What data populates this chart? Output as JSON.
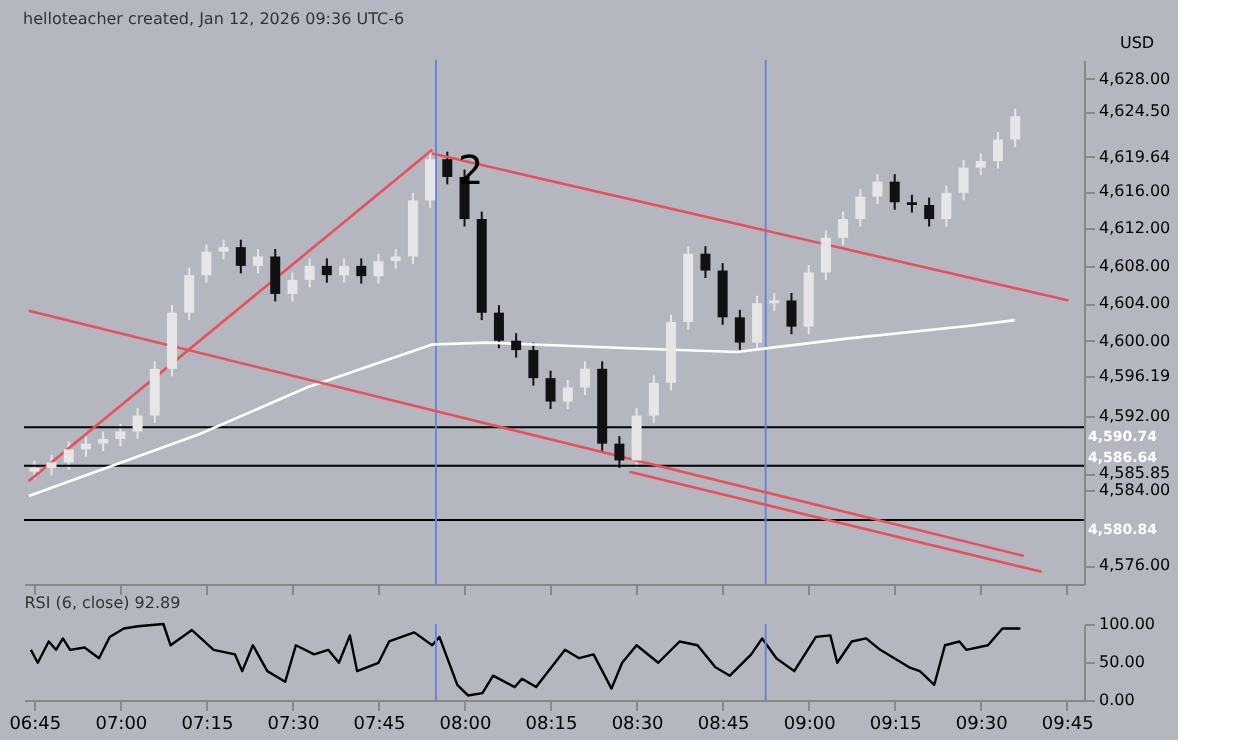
{
  "chart_data": [
    {
      "type": "candlestick",
      "title": "helloteacher created, Jan 12, 2026 09:36 UTC-6",
      "x": [
        6.75,
        6.8,
        6.85,
        6.9,
        6.95,
        7.0,
        7.05,
        7.1,
        7.15,
        7.2,
        7.25,
        7.3,
        7.35,
        7.4,
        7.45,
        7.5,
        7.55,
        7.6,
        7.65,
        7.7,
        7.75,
        7.8,
        7.85,
        7.9,
        7.95,
        8.0,
        8.05,
        8.1,
        8.15,
        8.2,
        8.25,
        8.3,
        8.35,
        8.4,
        8.45,
        8.5,
        8.55,
        8.6,
        8.65,
        8.7,
        8.75,
        8.8,
        8.85,
        8.9,
        8.95,
        9.0,
        9.05,
        9.1,
        9.15,
        9.2,
        9.25,
        9.3,
        9.35,
        9.4,
        9.45,
        9.5,
        9.55,
        9.6
      ],
      "ohlc": [
        [
          4586,
          4587.2,
          4585.2,
          4586.4
        ],
        [
          4586.4,
          4587.8,
          4585.6,
          4587
        ],
        [
          4587,
          4589.2,
          4586.2,
          4588.4
        ],
        [
          4588.4,
          4589.8,
          4587.6,
          4589
        ],
        [
          4589,
          4590.3,
          4588.2,
          4589.5
        ],
        [
          4589.5,
          4591.1,
          4588.7,
          4590.3
        ],
        [
          4590.3,
          4592.8,
          4589.5,
          4592
        ],
        [
          4592,
          4597.8,
          4591.2,
          4597
        ],
        [
          4597,
          4603.8,
          4596.2,
          4603
        ],
        [
          4603,
          4607.8,
          4602.2,
          4607
        ],
        [
          4607,
          4610.3,
          4606.2,
          4609.5
        ],
        [
          4609.5,
          4610.8,
          4608.7,
          4610
        ],
        [
          4610,
          4610.8,
          4607.2,
          4608
        ],
        [
          4608,
          4609.8,
          4607.2,
          4609
        ],
        [
          4609,
          4609.8,
          4604.2,
          4605
        ],
        [
          4605,
          4607.3,
          4604.2,
          4606.5
        ],
        [
          4606.5,
          4608.8,
          4605.7,
          4608
        ],
        [
          4608,
          4608.8,
          4606.2,
          4607
        ],
        [
          4607,
          4608.8,
          4606.2,
          4608
        ],
        [
          4608,
          4608.8,
          4606.1,
          4606.9
        ],
        [
          4606.9,
          4609.3,
          4606.1,
          4608.5
        ],
        [
          4608.5,
          4609.8,
          4607.7,
          4609
        ],
        [
          4609,
          4615.8,
          4608.2,
          4615
        ],
        [
          4615,
          4620.2,
          4614.2,
          4619.4
        ],
        [
          4619.4,
          4620.2,
          4616.7,
          4617.5
        ],
        [
          4617.5,
          4618.3,
          4612.2,
          4613
        ],
        [
          4613,
          4613.8,
          4602.2,
          4603
        ],
        [
          4603,
          4603.8,
          4599.2,
          4600
        ],
        [
          4600,
          4600.8,
          4598.2,
          4599
        ],
        [
          4599,
          4599.8,
          4595.2,
          4596
        ],
        [
          4596,
          4596.8,
          4592.7,
          4593.5
        ],
        [
          4593.5,
          4595.8,
          4592.7,
          4595
        ],
        [
          4595,
          4597.8,
          4594.2,
          4597
        ],
        [
          4597,
          4597.8,
          4588.2,
          4589
        ],
        [
          4589,
          4589.8,
          4586.4,
          4587.2
        ],
        [
          4587.2,
          4592.8,
          4586.4,
          4592
        ],
        [
          4592,
          4596.3,
          4591.2,
          4595.5
        ],
        [
          4595.5,
          4602.8,
          4594.7,
          4602
        ],
        [
          4602,
          4610.1,
          4601.2,
          4609.3
        ],
        [
          4609.3,
          4610.1,
          4606.7,
          4607.5
        ],
        [
          4607.5,
          4608.3,
          4601.7,
          4602.5
        ],
        [
          4602.5,
          4603.3,
          4599,
          4599.8
        ],
        [
          4599.8,
          4604.8,
          4599,
          4604
        ],
        [
          4604,
          4605.1,
          4603.2,
          4604.3
        ],
        [
          4604.3,
          4605.1,
          4600.7,
          4601.5
        ],
        [
          4601.5,
          4608.1,
          4600.7,
          4607.3
        ],
        [
          4607.3,
          4611.8,
          4606.5,
          4611
        ],
        [
          4611,
          4613.8,
          4610.2,
          4613
        ],
        [
          4613,
          4616.2,
          4612.2,
          4615.4
        ],
        [
          4615.4,
          4617.8,
          4614.6,
          4617
        ],
        [
          4617,
          4617.8,
          4614,
          4614.8
        ],
        [
          4614.8,
          4615.6,
          4613.7,
          4614.5
        ],
        [
          4614.5,
          4615.3,
          4612.2,
          4613
        ],
        [
          4613,
          4616.6,
          4612.2,
          4615.8
        ],
        [
          4615.8,
          4619.3,
          4615,
          4618.5
        ],
        [
          4618.5,
          4620,
          4617.7,
          4619.2
        ],
        [
          4619.2,
          4622.3,
          4618.4,
          4621.5
        ],
        [
          4621.5,
          4624.8,
          4620.7,
          4624
        ]
      ],
      "series": [
        {
          "type": "line",
          "color": "#ffffff",
          "x": [
            6.734,
            7.229,
            7.542,
            7.906,
            8.063,
            8.479,
            8.792,
            9.104,
            9.469,
            9.599
          ],
          "values": [
            4583.4,
            4590,
            4595,
            4599.6,
            4599.8,
            4599.2,
            4598.8,
            4600.2,
            4601.6,
            4602.2
          ]
        },
        {
          "type": "line",
          "color": "#e8505b",
          "x": [
            6.734,
            9.625
          ],
          "values": [
            4603.2,
            4577
          ]
        },
        {
          "type": "line",
          "color": "#e8505b",
          "x": [
            6.734,
            7.906
          ],
          "values": [
            4585,
            4620.4
          ]
        },
        {
          "type": "line",
          "color": "#e8505b",
          "x": [
            7.906,
            9.755
          ],
          "values": [
            4620,
            4604.3
          ]
        },
        {
          "type": "line",
          "color": "#e8505b",
          "x": [
            8.479,
            9.677
          ],
          "values": [
            4586,
            4575.3
          ]
        }
      ],
      "xlim": [
        6.72,
        9.8
      ],
      "ylim": [
        4574,
        4630
      ],
      "xticks": [
        {
          "value": 6.75,
          "label": null
        },
        {
          "value": 7,
          "label": null
        },
        {
          "value": 7.25,
          "label": null
        },
        {
          "value": 7.5,
          "label": null
        },
        {
          "value": 7.75,
          "label": null
        },
        {
          "value": 8,
          "label": null
        },
        {
          "value": 8.25,
          "label": null
        },
        {
          "value": 8.5,
          "label": null
        },
        {
          "value": 8.75,
          "label": null
        },
        {
          "value": 9,
          "label": null
        },
        {
          "value": 9.25,
          "label": null
        },
        {
          "value": 9.5,
          "label": null
        },
        {
          "value": 9.75,
          "label": null
        }
      ],
      "yticks": [
        {
          "value": 4576,
          "label": "4,576.00"
        },
        {
          "value": 4584,
          "label": "4,584.00"
        },
        {
          "value": 4585.85,
          "label": "4,585.85"
        },
        {
          "value": 4592,
          "label": "4,592.00"
        },
        {
          "value": 4596.19,
          "label": "4,596.19"
        },
        {
          "value": 4600,
          "label": "4,600.00"
        },
        {
          "value": 4604,
          "label": "4,604.00"
        },
        {
          "value": 4608,
          "label": "4,608.00"
        },
        {
          "value": 4612,
          "label": "4,612.00"
        },
        {
          "value": 4616,
          "label": "4,616.00"
        },
        {
          "value": 4619.64,
          "label": "4,619.64"
        },
        {
          "value": 4624.5,
          "label": "4,624.50"
        },
        {
          "value": 4628,
          "label": "4,628.00"
        }
      ],
      "ref_lines": [
        {
          "axis": "y",
          "value": 4590.74,
          "label": "4,590.74",
          "color": "#000000"
        },
        {
          "axis": "y",
          "value": 4586.64,
          "label": "4,586.64",
          "color": "#000000"
        },
        {
          "axis": "y",
          "value": 4580.84,
          "label": "4,580.84",
          "color": "#000000"
        },
        {
          "axis": "x",
          "value": 7.917,
          "color": "#6b85d6"
        },
        {
          "axis": "x",
          "value": 8.875,
          "color": "#6b85d6"
        }
      ],
      "annotations": [
        {
          "text": "2",
          "x": 7.9,
          "y": 4620.2
        },
        "USD"
      ],
      "tick_labels": "y",
      "grid": false
    },
    {
      "type": "line",
      "title": "RSI (6, close) 92.89",
      "x": [
        6.74,
        6.76,
        6.792,
        6.813,
        6.833,
        6.854,
        6.896,
        6.938,
        6.969,
        7.01,
        7.052,
        7.125,
        7.146,
        7.208,
        7.271,
        7.333,
        7.354,
        7.385,
        7.427,
        7.479,
        7.51,
        7.563,
        7.604,
        7.635,
        7.667,
        7.688,
        7.75,
        7.781,
        7.854,
        7.906,
        7.927,
        7.979,
        8.01,
        8.052,
        8.083,
        8.146,
        8.167,
        8.208,
        8.292,
        8.333,
        8.375,
        8.427,
        8.458,
        8.5,
        8.563,
        8.625,
        8.677,
        8.729,
        8.771,
        8.833,
        8.865,
        8.906,
        8.958,
        9.021,
        9.063,
        9.083,
        9.125,
        9.167,
        9.208,
        9.292,
        9.323,
        9.365,
        9.396,
        9.438,
        9.458,
        9.521,
        9.563,
        9.615
      ],
      "values": [
        66,
        49,
        77,
        66,
        81,
        66,
        69,
        55,
        83,
        94,
        97,
        100,
        72,
        92,
        66,
        60,
        38,
        72,
        38,
        24,
        72,
        60,
        66,
        49,
        85,
        38,
        49,
        77,
        89,
        72,
        83,
        20,
        6,
        9,
        32,
        17,
        28,
        17,
        66,
        55,
        60,
        15,
        49,
        72,
        49,
        77,
        72,
        43,
        32,
        60,
        81,
        55,
        38,
        83,
        85,
        49,
        77,
        81,
        66,
        43,
        38,
        20,
        72,
        77,
        66,
        72,
        94,
        94
      ],
      "color": "#000000",
      "xlim": [
        6.72,
        9.8
      ],
      "ylim": [
        0,
        100
      ],
      "xticks": [
        {
          "value": 6.75,
          "label": "06:45"
        },
        {
          "value": 7,
          "label": "07:00"
        },
        {
          "value": 7.25,
          "label": "07:15"
        },
        {
          "value": 7.5,
          "label": "07:30"
        },
        {
          "value": 7.75,
          "label": "07:45"
        },
        {
          "value": 8,
          "label": "08:00"
        },
        {
          "value": 8.25,
          "label": "08:15"
        },
        {
          "value": 8.5,
          "label": "08:30"
        },
        {
          "value": 8.75,
          "label": "08:45"
        },
        {
          "value": 9,
          "label": "09:00"
        },
        {
          "value": 9.25,
          "label": "09:15"
        },
        {
          "value": 9.5,
          "label": "09:30"
        },
        {
          "value": 9.75,
          "label": "09:45"
        }
      ],
      "yticks": [
        {
          "value": 0,
          "label": "0.00"
        },
        {
          "value": 50,
          "label": "50.00"
        },
        {
          "value": 100,
          "label": "100.00"
        }
      ],
      "ref_lines": [
        {
          "axis": "x",
          "value": 7.917,
          "color": "#6b85d6"
        },
        {
          "axis": "x",
          "value": 8.875,
          "color": "#6b85d6"
        }
      ],
      "grid": false
    }
  ]
}
